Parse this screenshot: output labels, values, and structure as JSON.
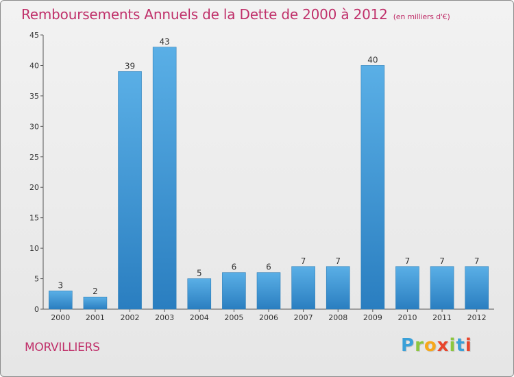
{
  "title": "Remboursements Annuels de la Dette de 2000 à 2012",
  "subtitle": "(en milliers d'€)",
  "commune": "MORVILLIERS",
  "logo": {
    "letters": [
      "P",
      "r",
      "o",
      "x",
      "i",
      "t",
      "i"
    ],
    "colors": [
      "#3aa0d8",
      "#8cc63f",
      "#f7a81b",
      "#e8452c",
      "#8cc63f",
      "#3aa0d8",
      "#e8452c"
    ]
  },
  "colors": {
    "bar_top": "#5aafe6",
    "bar_bottom": "#2a7ec0",
    "title": "#c0306a",
    "axis": "#555555"
  },
  "chart_data": {
    "type": "bar",
    "categories": [
      "2000",
      "2001",
      "2002",
      "2003",
      "2004",
      "2005",
      "2006",
      "2007",
      "2008",
      "2009",
      "2010",
      "2011",
      "2012"
    ],
    "values": [
      3,
      2,
      39,
      43,
      5,
      6,
      6,
      7,
      7,
      40,
      7,
      7,
      7
    ],
    "ylim": [
      0,
      45
    ],
    "yticks": [
      0,
      5,
      10,
      15,
      20,
      25,
      30,
      35,
      40,
      45
    ],
    "grid": false,
    "data_labels": true
  }
}
